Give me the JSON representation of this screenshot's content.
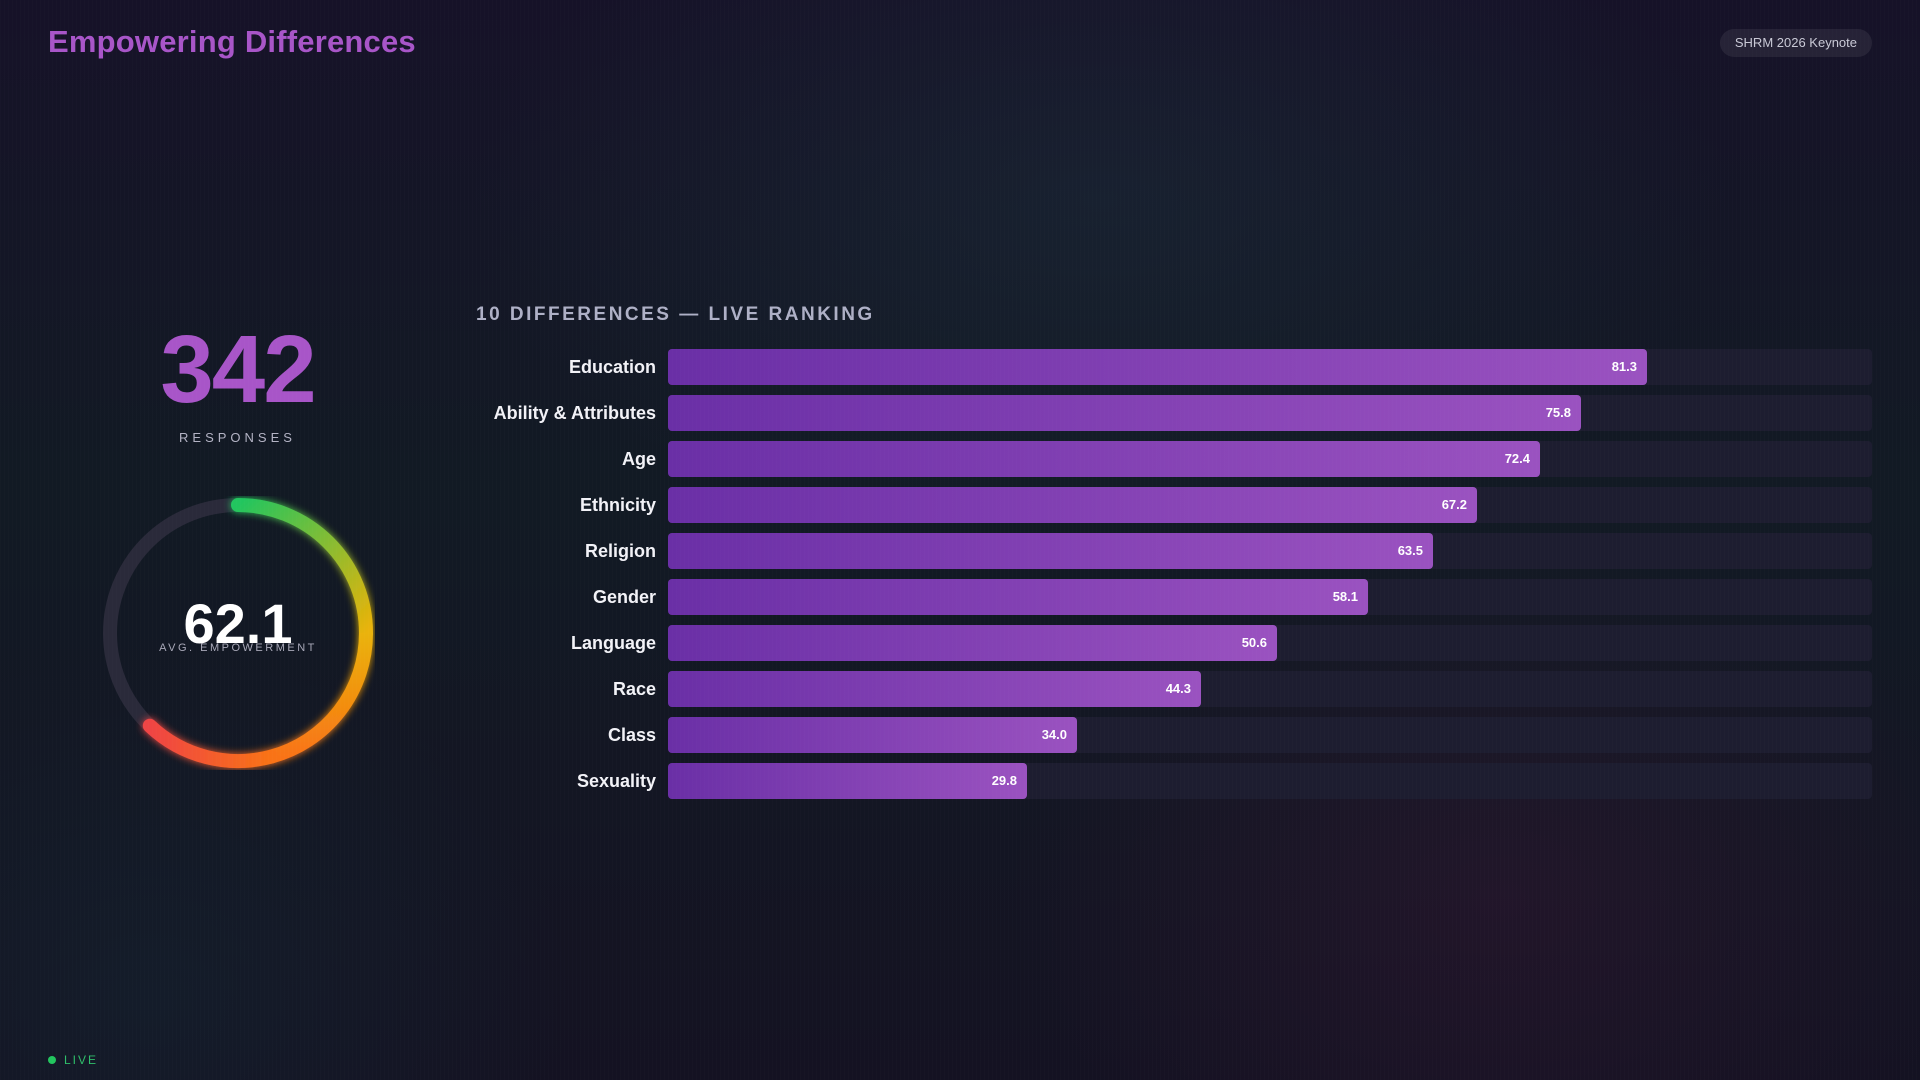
{
  "header": {
    "title": "Empowering Differences",
    "badge": "SHRM 2026 Keynote"
  },
  "stats": {
    "responses_value": "342",
    "responses_label": "RESPONSES",
    "gauge_value": "62.1",
    "gauge_label": "AVG. EMPOWERMENT",
    "gauge_fraction": 0.621
  },
  "colors": {
    "accent": "#a855c8",
    "bar_start": "#6a2fa6",
    "bar_end": "#9a52c0",
    "gauge_green": "#22c55e",
    "gauge_yellow": "#eab308",
    "gauge_orange": "#f97316",
    "gauge_red": "#ef4444",
    "live": "#22c55e"
  },
  "status": {
    "live_label": "LIVE"
  },
  "chart_data": {
    "type": "bar",
    "orientation": "horizontal",
    "title": "10 DIFFERENCES — LIVE RANKING",
    "xlabel": "",
    "ylabel": "",
    "xlim": [
      0,
      100
    ],
    "grid": false,
    "categories": [
      "Education",
      "Ability & Attributes",
      "Age",
      "Ethnicity",
      "Religion",
      "Gender",
      "Language",
      "Race",
      "Class",
      "Sexuality"
    ],
    "values": [
      81.3,
      75.8,
      72.4,
      67.2,
      63.5,
      58.1,
      50.6,
      44.3,
      34.0,
      29.8
    ],
    "value_labels": [
      "81.3",
      "75.8",
      "72.4",
      "67.2",
      "63.5",
      "58.1",
      "50.6",
      "44.3",
      "34.0",
      "29.8"
    ]
  }
}
